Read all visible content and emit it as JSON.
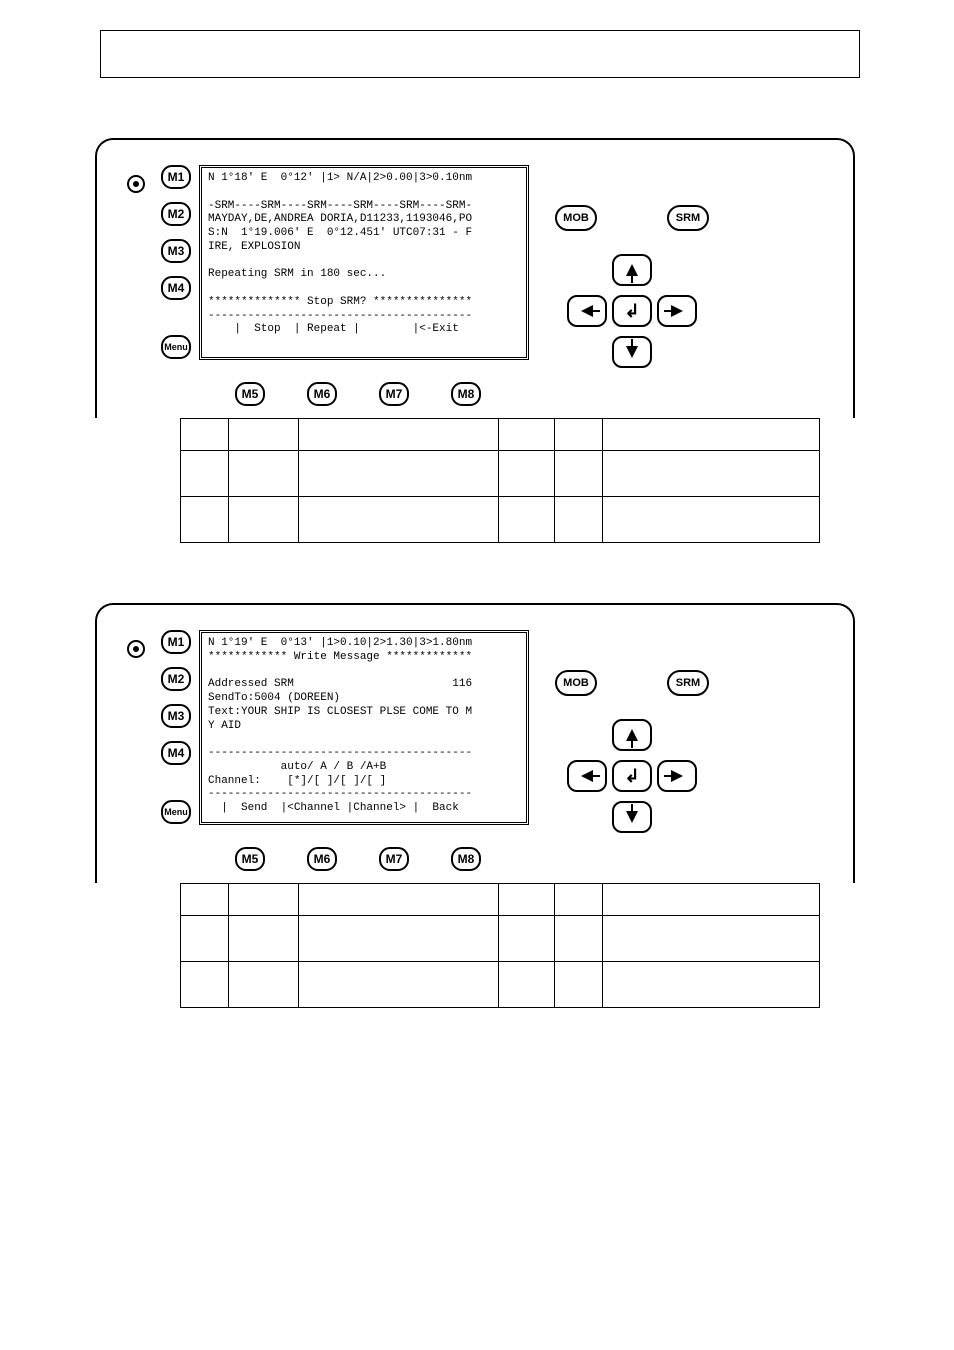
{
  "buttons": {
    "m1": "M1",
    "m2": "M2",
    "m3": "M3",
    "m4": "M4",
    "m5": "M5",
    "m6": "M6",
    "m7": "M7",
    "m8": "M8",
    "menu": "Menu",
    "mob": "MOB",
    "srm": "SRM"
  },
  "panel1": {
    "screen_lines": [
      "N 1°18' E  0°12' |1> N/A|2>0.00|3>0.10nm",
      "",
      "-SRM----SRM----SRM----SRM----SRM----SRM-",
      "MAYDAY,DE,ANDREA DORIA,D11233,1193046,PO",
      "S:N  1°19.006' E  0°12.451' UTC07:31 - F",
      "IRE, EXPLOSION",
      "",
      "Repeating SRM in 180 sec...",
      "",
      "************** Stop SRM? ***************",
      "----------------------------------------",
      "    |  Stop  | Repeat |        |<-Exit"
    ]
  },
  "panel2": {
    "screen_lines": [
      "N 1°19' E  0°13' |1>0.10|2>1.30|3>1.80nm",
      "************ Write Message *************",
      "",
      "Addressed SRM                        116",
      "SendTo:5004 (DOREEN)",
      "Text:YOUR SHIP IS CLOSEST PLSE COME TO M",
      "Y AID",
      "",
      "----------------------------------------",
      "           auto/ A / B /A+B",
      "Channel:    [*]/[ ]/[ ]/[ ]",
      "----------------------------------------",
      "  |  Send  |<Channel |Channel> |  Back"
    ]
  },
  "table1": {
    "header": [
      "",
      "",
      "",
      "",
      "",
      ""
    ],
    "rows": [
      [
        "",
        "",
        "",
        "",
        "",
        ""
      ],
      [
        "",
        "",
        "",
        "",
        "",
        ""
      ]
    ]
  },
  "table2": {
    "header": [
      "",
      "",
      "",
      "",
      "",
      ""
    ],
    "rows": [
      [
        "",
        "",
        "",
        "",
        "",
        ""
      ],
      [
        "",
        "",
        "",
        "",
        "",
        ""
      ]
    ]
  },
  "colors": {
    "background": "#ffffff",
    "line": "#000000"
  }
}
